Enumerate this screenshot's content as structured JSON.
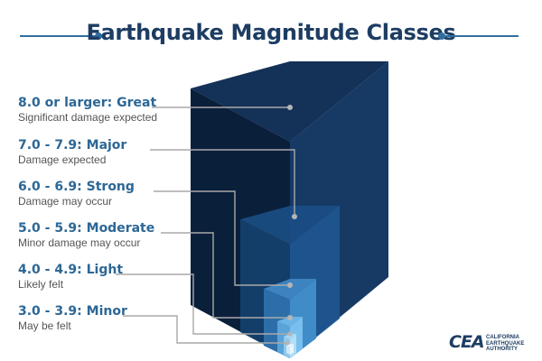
{
  "title": "Earthquake Magnitude Classes",
  "classes": [
    {
      "name": "8.0 or larger: Great",
      "desc": "Significant damage expected"
    },
    {
      "name": "7.0 - 7.9: Major",
      "desc": "Damage expected"
    },
    {
      "name": "6.0 - 6.9: Strong",
      "desc": "Damage may occur"
    },
    {
      "name": "5.0 - 5.9: Moderate",
      "desc": "Minor damage may occur"
    },
    {
      "name": "4.0 - 4.9: Light",
      "desc": "Likely felt"
    },
    {
      "name": "3.0 - 3.9: Minor",
      "desc": "May be felt"
    }
  ],
  "logo": {
    "mark": "CEA",
    "line1": "CALIFORNIA",
    "line2": "EARTHQUAKE",
    "line3": "AUTHORITY"
  },
  "colors": {
    "title": "#1d3d63",
    "class_name": "#2c6796",
    "description": "#555555",
    "accent": "#2f6fa0",
    "cube_dark": "#0d2745",
    "cube_mid": "#173a63",
    "cube_light": "#5aaae0",
    "leader_line": "#a9a9a9"
  }
}
